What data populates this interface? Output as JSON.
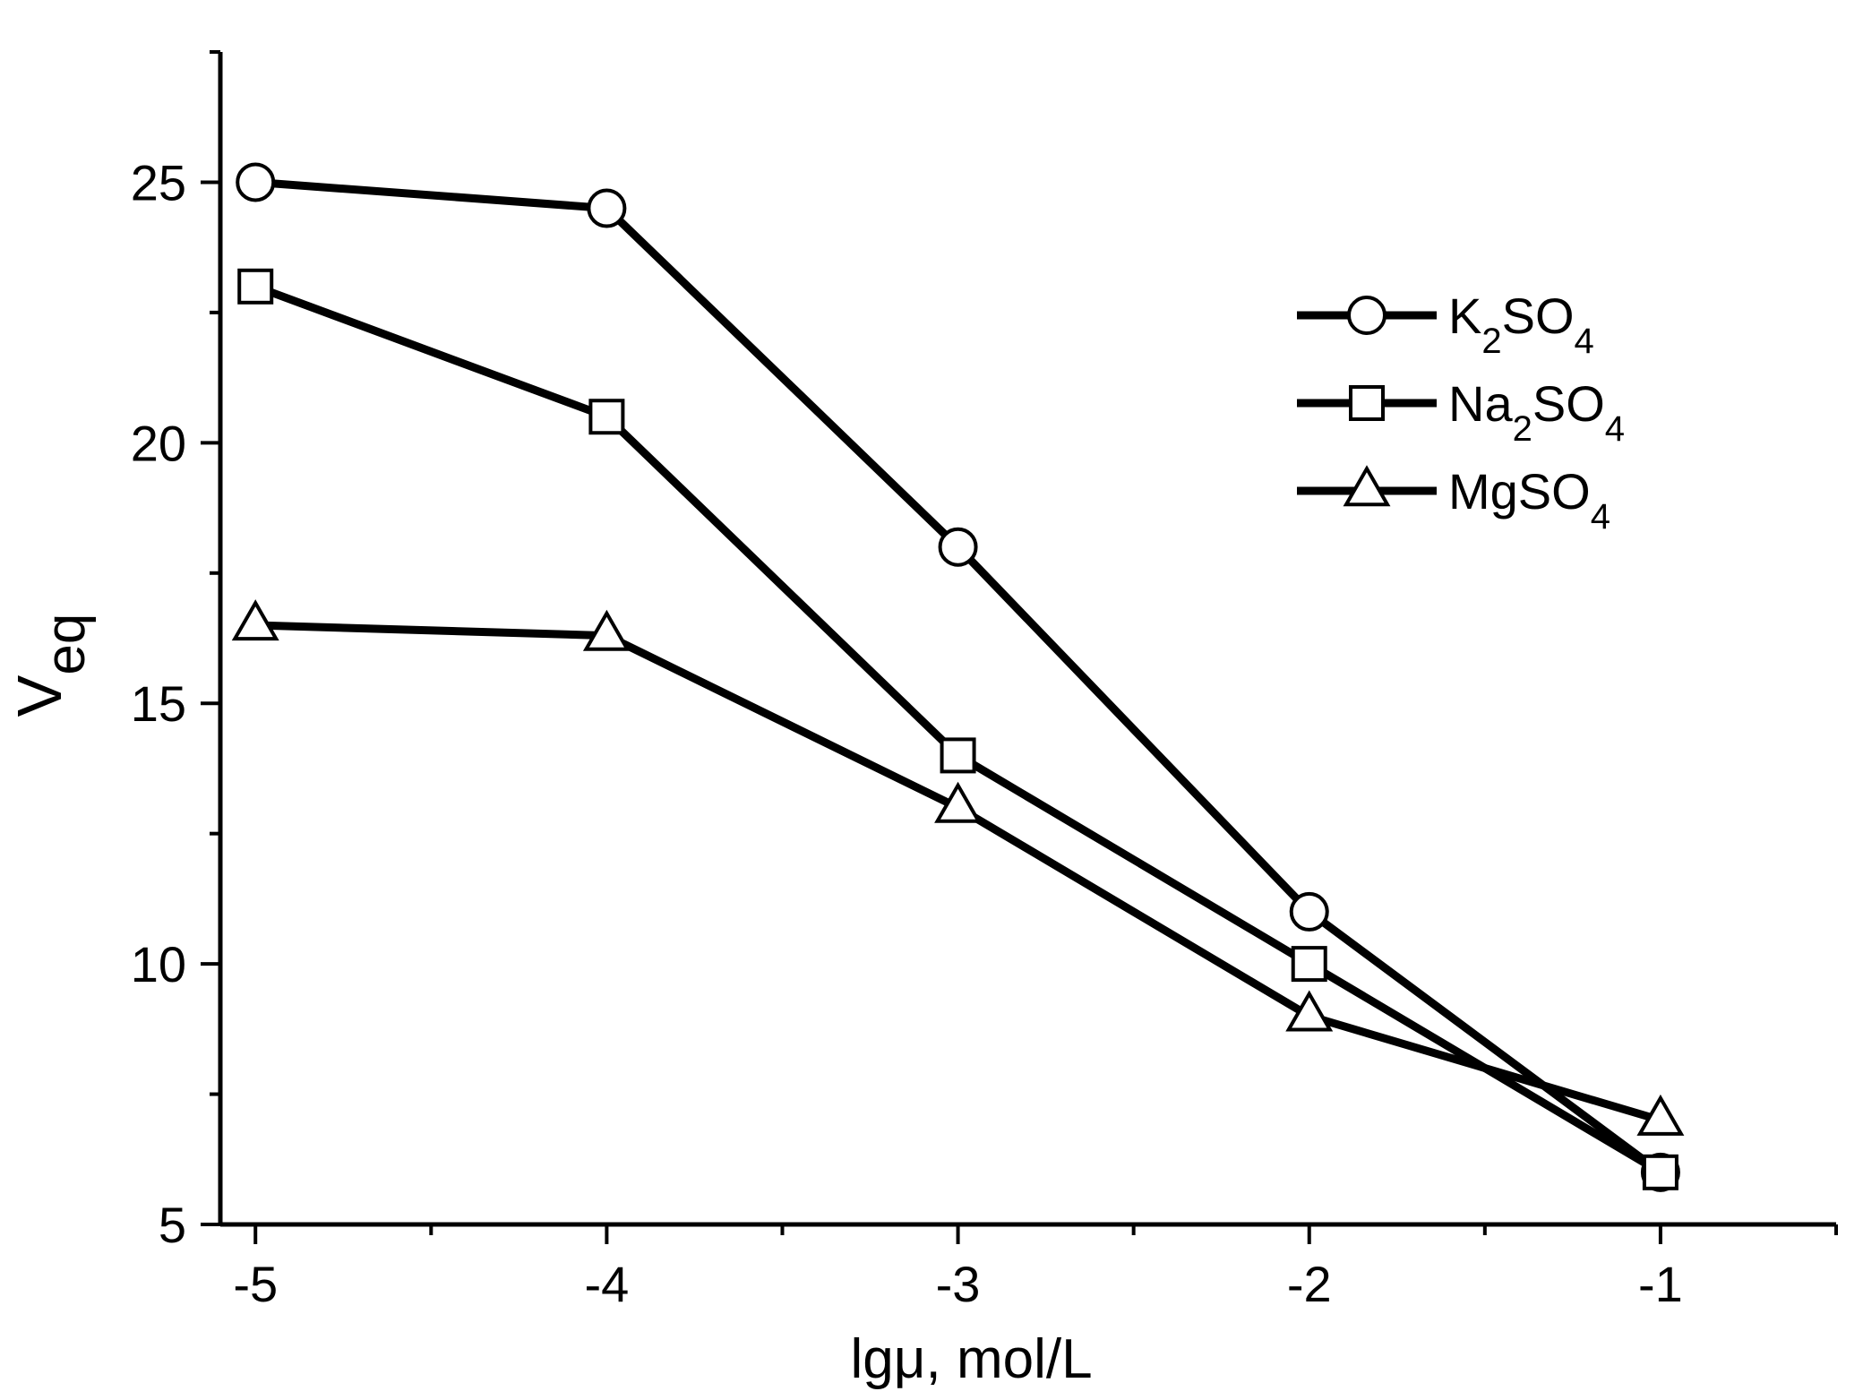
{
  "chart_data": {
    "type": "line",
    "title": "",
    "xlabel": "lgμ, mol/L",
    "ylabel_main": "V",
    "ylabel_sub": "eq",
    "x": [
      -5,
      -4,
      -3,
      -2,
      -1
    ],
    "xlim": [
      -5.1,
      -0.5
    ],
    "ylim": [
      5,
      27.5
    ],
    "x_ticks": [
      -5,
      -4,
      -3,
      -2,
      -1
    ],
    "x_tick_labels": [
      "-5",
      "-4",
      "-3",
      "-2",
      "-1"
    ],
    "x_minor_ticks": [
      -4.5,
      -3.5,
      -2.5,
      -1.5,
      -0.5
    ],
    "y_ticks": [
      5,
      10,
      15,
      20,
      25
    ],
    "y_tick_labels": [
      "5",
      "10",
      "15",
      "20",
      "25"
    ],
    "y_minor_ticks": [
      7.5,
      12.5,
      17.5,
      22.5,
      27.5
    ],
    "grid": false,
    "legend_position": "top-right",
    "series": [
      {
        "name": "K2SO4",
        "label_main": "K",
        "label_sub1": "2",
        "label_mid": "SO",
        "label_sub2": "4",
        "marker": "circle",
        "values": [
          25,
          24.5,
          18,
          11,
          6
        ]
      },
      {
        "name": "Na2SO4",
        "label_main": "Na",
        "label_sub1": "2",
        "label_mid": "SO",
        "label_sub2": "4",
        "marker": "square",
        "values": [
          23,
          20.5,
          14,
          10,
          6
        ]
      },
      {
        "name": "MgSO4",
        "label_main": "MgSO",
        "label_sub1": "",
        "label_mid": "",
        "label_sub2": "4",
        "marker": "triangle",
        "values": [
          16.5,
          16.3,
          13,
          9,
          7
        ]
      }
    ]
  }
}
